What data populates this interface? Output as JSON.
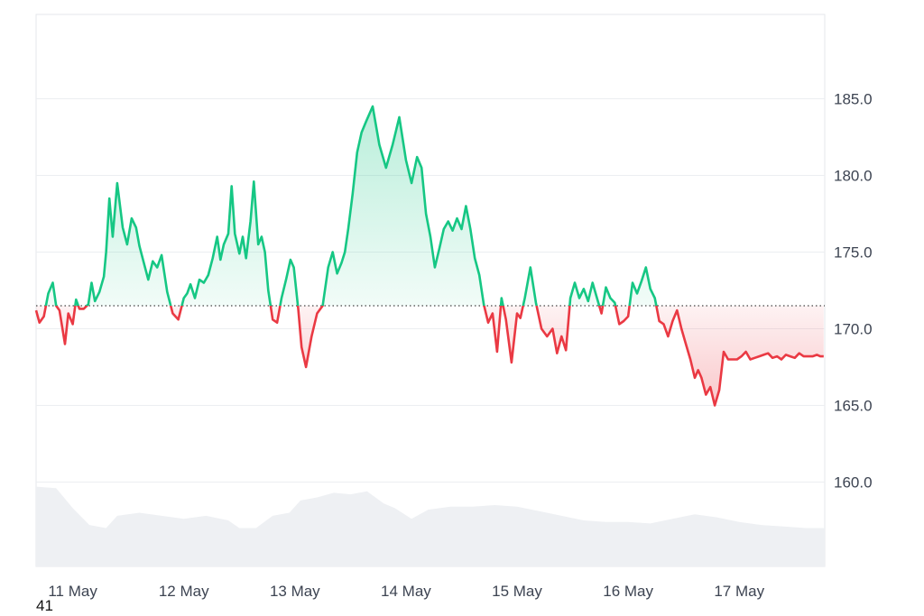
{
  "chart_data": {
    "type": "line",
    "title": "",
    "xlabel": "",
    "ylabel": "",
    "ylim": [
      154.5,
      190.5
    ],
    "y_ticks": [
      160.0,
      165.0,
      170.0,
      175.0,
      180.0,
      185.0
    ],
    "y_tick_labels": [
      "160.0",
      "165.0",
      "170.0",
      "175.0",
      "180.0",
      "185.0"
    ],
    "x_tick_labels": [
      "11 May",
      "12 May",
      "13 May",
      "14 May",
      "15 May",
      "16 May",
      "17 May"
    ],
    "x_range": [
      10.67,
      17.77
    ],
    "baseline": 171.5,
    "grid": true,
    "colors": {
      "above": "#16c784",
      "below": "#ea3943",
      "volume": "#eef0f3",
      "grid": "#eceef1"
    },
    "series": [
      {
        "x": [
          10.67,
          10.7,
          10.74,
          10.78,
          10.82,
          10.85,
          10.88,
          10.93,
          10.96,
          11.0,
          11.03,
          11.06,
          11.1,
          11.14,
          11.17,
          11.2,
          11.24,
          11.28,
          11.3,
          11.33,
          11.36,
          11.4,
          11.45,
          11.49,
          11.53,
          11.57,
          11.6,
          11.64,
          11.68,
          11.72,
          11.76,
          11.8,
          11.85,
          11.9,
          11.95,
          12.0,
          12.03,
          12.06,
          12.1,
          12.14,
          12.18,
          12.22,
          12.26,
          12.3,
          12.33,
          12.36,
          12.4,
          12.43,
          12.46,
          12.5,
          12.53,
          12.56,
          12.6,
          12.63,
          12.67,
          12.7,
          12.73,
          12.76,
          12.8,
          12.84,
          12.88,
          12.92,
          12.96,
          12.99,
          13.03,
          13.06,
          13.1,
          13.15,
          13.2,
          13.25,
          13.3,
          13.34,
          13.38,
          13.42,
          13.45,
          13.48,
          13.52,
          13.56,
          13.6,
          13.64,
          13.7,
          13.76,
          13.82,
          13.88,
          13.94,
          14.0,
          14.05,
          14.1,
          14.14,
          14.18,
          14.22,
          14.26,
          14.3,
          14.34,
          14.38,
          14.42,
          14.46,
          14.5,
          14.54,
          14.58,
          14.62,
          14.66,
          14.7,
          14.74,
          14.78,
          14.82,
          14.86,
          14.9,
          14.95,
          15.0,
          15.03,
          15.07,
          15.12,
          15.17,
          15.22,
          15.27,
          15.32,
          15.36,
          15.4,
          15.44,
          15.48,
          15.52,
          15.56,
          15.6,
          15.64,
          15.68,
          15.72,
          15.76,
          15.8,
          15.84,
          15.88,
          15.92,
          15.96,
          16.0,
          16.04,
          16.08,
          16.12,
          16.16,
          16.2,
          16.24,
          16.28,
          16.32,
          16.36,
          16.4,
          16.44,
          16.48,
          16.52,
          16.56,
          16.6,
          16.63,
          16.66,
          16.7,
          16.74,
          16.78,
          16.82,
          16.86,
          16.9,
          16.94,
          16.98,
          17.02,
          17.06,
          17.1,
          17.14,
          17.18,
          17.22,
          17.26,
          17.3,
          17.34,
          17.38,
          17.42,
          17.46,
          17.5,
          17.54,
          17.58,
          17.62,
          17.66,
          17.7,
          17.73,
          17.76
        ],
        "values": [
          171.2,
          170.4,
          170.8,
          172.3,
          173.0,
          171.5,
          171.2,
          169.0,
          171.0,
          170.3,
          171.9,
          171.3,
          171.3,
          171.6,
          173.0,
          171.8,
          172.4,
          173.4,
          175.0,
          178.5,
          176.0,
          179.5,
          176.6,
          175.5,
          177.2,
          176.6,
          175.4,
          174.3,
          173.2,
          174.4,
          174.0,
          174.8,
          172.4,
          171.0,
          170.6,
          172.0,
          172.3,
          172.9,
          172.0,
          173.2,
          173.0,
          173.5,
          174.6,
          176.0,
          174.5,
          175.5,
          176.2,
          179.3,
          176.2,
          174.9,
          176.0,
          174.6,
          177.0,
          179.6,
          175.5,
          176.0,
          175.0,
          172.5,
          170.6,
          170.4,
          172.0,
          173.2,
          174.5,
          174.0,
          171.3,
          168.8,
          167.5,
          169.5,
          171.0,
          171.5,
          174.0,
          175.0,
          173.6,
          174.3,
          175.0,
          176.5,
          178.8,
          181.5,
          182.8,
          183.5,
          184.5,
          182.0,
          180.5,
          182.0,
          183.8,
          181.0,
          179.5,
          181.2,
          180.5,
          177.5,
          176.0,
          174.0,
          175.2,
          176.5,
          177.0,
          176.4,
          177.2,
          176.5,
          178.0,
          176.5,
          174.6,
          173.5,
          171.6,
          170.4,
          171.0,
          168.5,
          172.0,
          170.6,
          167.8,
          171.0,
          170.7,
          172.0,
          174.0,
          171.7,
          170.0,
          169.5,
          170.0,
          168.4,
          169.5,
          168.6,
          172.0,
          173.0,
          172.0,
          172.6,
          171.8,
          173.0,
          172.0,
          171.0,
          172.7,
          172.0,
          171.7,
          170.3,
          170.5,
          170.8,
          173.0,
          172.3,
          173.1,
          174.0,
          172.6,
          172.0,
          170.5,
          170.3,
          169.5,
          170.5,
          171.2,
          170.0,
          169.0,
          168.0,
          166.8,
          167.3,
          166.8,
          165.7,
          166.2,
          165.0,
          166.0,
          168.5,
          168.0,
          168.0,
          168.0,
          168.2,
          168.5,
          168.0,
          168.1,
          168.2,
          168.3,
          168.4,
          168.1,
          168.2,
          168.0,
          168.3,
          168.2,
          168.1,
          168.4,
          168.2,
          168.2,
          168.2,
          168.3,
          168.2,
          168.2
        ]
      }
    ],
    "volume": {
      "x": [
        10.67,
        10.85,
        11.0,
        11.15,
        11.3,
        11.4,
        11.6,
        11.8,
        12.0,
        12.2,
        12.4,
        12.5,
        12.65,
        12.8,
        12.95,
        13.05,
        13.2,
        13.35,
        13.5,
        13.65,
        13.8,
        13.9,
        14.05,
        14.2,
        14.4,
        14.6,
        14.8,
        15.0,
        15.2,
        15.4,
        15.6,
        15.8,
        16.0,
        16.2,
        16.4,
        16.6,
        16.8,
        17.0,
        17.2,
        17.4,
        17.6,
        17.77
      ],
      "values": [
        159.7,
        159.6,
        158.3,
        157.2,
        157.0,
        157.8,
        158.0,
        157.8,
        157.6,
        157.8,
        157.5,
        157.0,
        157.0,
        157.8,
        158.0,
        158.8,
        159.0,
        159.3,
        159.2,
        159.4,
        158.6,
        158.3,
        157.6,
        158.2,
        158.4,
        158.4,
        158.5,
        158.4,
        158.1,
        157.8,
        157.5,
        157.4,
        157.4,
        157.3,
        157.6,
        157.9,
        157.7,
        157.4,
        157.2,
        157.1,
        157.0,
        157.0
      ]
    }
  },
  "footnote": "41"
}
